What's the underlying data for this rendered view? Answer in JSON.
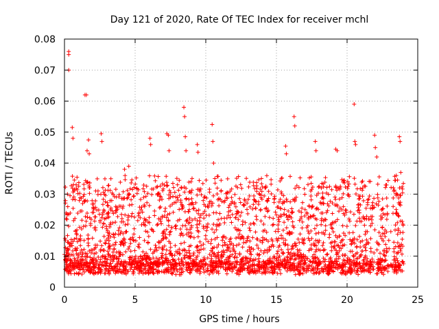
{
  "chart_data": {
    "type": "scatter",
    "title": "Day 121 of 2020, Rate Of TEC Index for receiver mchl",
    "xlabel": "GPS time / hours",
    "ylabel": "ROTI / TECUs",
    "xlim": [
      0,
      25
    ],
    "ylim": [
      0,
      0.08
    ],
    "xticks": [
      "0",
      "5",
      "10",
      "15",
      "20",
      "25"
    ],
    "yticks": [
      "0",
      "0.01",
      "0.02",
      "0.03",
      "0.04",
      "0.05",
      "0.06",
      "0.07",
      "0.08"
    ],
    "grid": true,
    "marker": "plus",
    "series": [
      {
        "color": "#ff0000",
        "x_range": [
          0,
          24
        ],
        "typical_band": [
          0.005,
          0.025
        ],
        "x": [
          0.3,
          0.3,
          0.3,
          0.55,
          0.6,
          1.45,
          1.55,
          1.6,
          1.7,
          1.75,
          2.6,
          2.65,
          4.25,
          4.55,
          6.05,
          6.1,
          7.25,
          7.35,
          7.4,
          8.45,
          8.5,
          8.55,
          8.6,
          9.4,
          9.45,
          10.45,
          10.5,
          10.55,
          16.25,
          16.3,
          15.65,
          15.7,
          17.75,
          17.8,
          19.2,
          19.3,
          20.5,
          20.55,
          20.6,
          21.95,
          22.0,
          22.1,
          23.7,
          23.75,
          23.8
        ],
        "y": [
          0.076,
          0.075,
          0.07,
          0.0515,
          0.048,
          0.062,
          0.062,
          0.044,
          0.0475,
          0.043,
          0.0495,
          0.047,
          0.038,
          0.039,
          0.048,
          0.046,
          0.0495,
          0.049,
          0.044,
          0.058,
          0.055,
          0.0485,
          0.044,
          0.046,
          0.0435,
          0.0525,
          0.047,
          0.04,
          0.055,
          0.052,
          0.0455,
          0.043,
          0.047,
          0.044,
          0.0445,
          0.044,
          0.059,
          0.047,
          0.046,
          0.049,
          0.045,
          0.042,
          0.0485,
          0.047,
          0.037
        ]
      }
    ]
  }
}
